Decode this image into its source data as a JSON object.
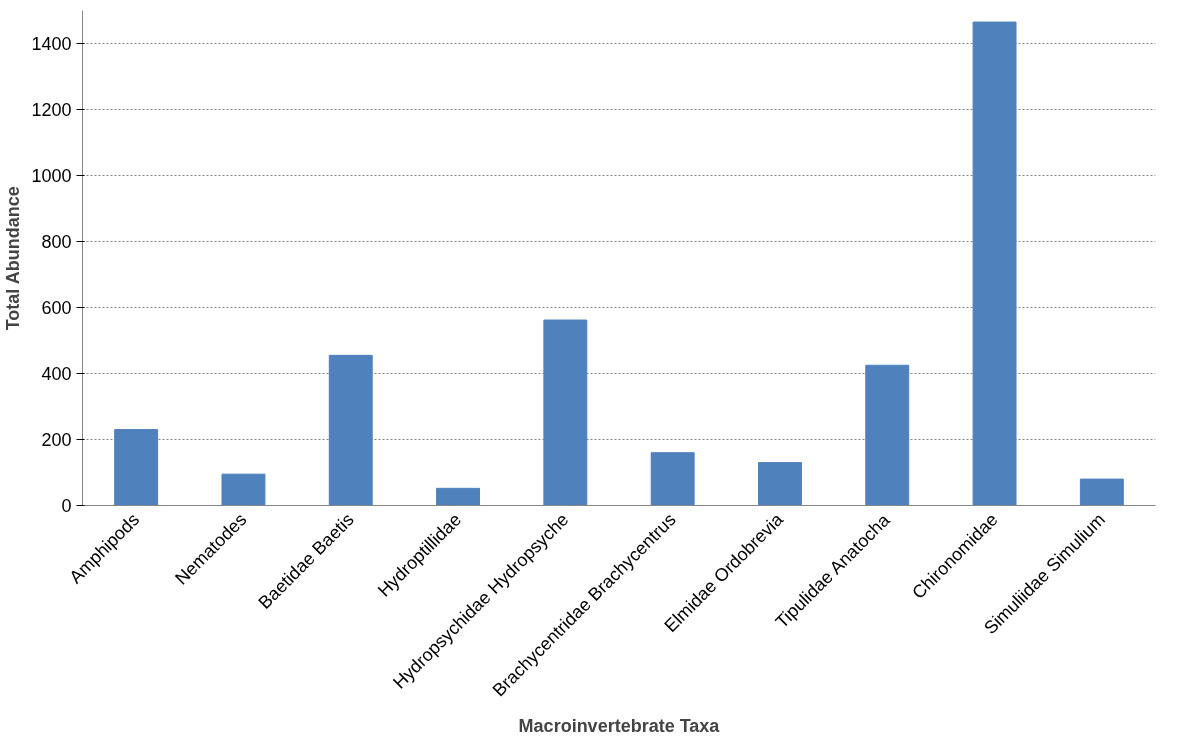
{
  "chart_data": {
    "type": "bar",
    "xlabel": "Macroinvertebrate Taxa",
    "ylabel": "Total Abundance",
    "categories": [
      "Amphipods",
      "Nematodes",
      "Baetidae Baetis",
      "Hydroptillidae",
      "Hydropsychidae Hydropsyche",
      "Brachycentridae Brachycentrus",
      "Elmidae Ordobrevia",
      "Tipulidae Anatocha",
      "Chironomidae",
      "Simuliidae Simulium"
    ],
    "values": [
      230,
      95,
      455,
      52,
      562,
      160,
      130,
      425,
      1465,
      80
    ],
    "color": "#4f81bd",
    "ylim": [
      0,
      1500
    ],
    "yticks": [
      0,
      200,
      400,
      600,
      800,
      1000,
      1200,
      1400
    ],
    "grid": "y"
  }
}
